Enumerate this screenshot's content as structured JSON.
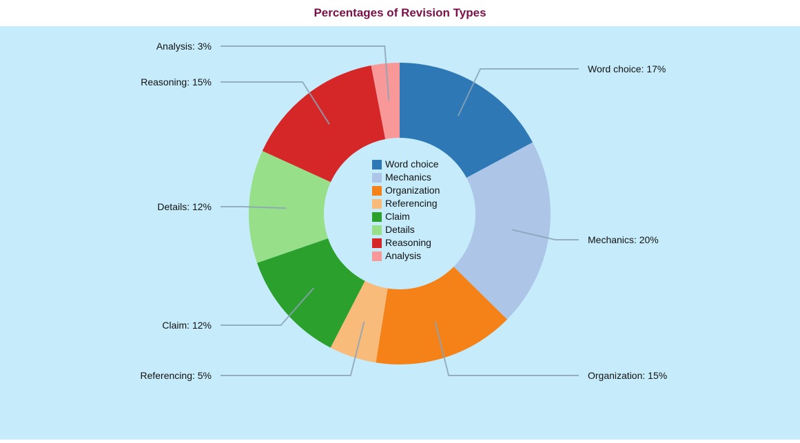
{
  "title": "Percentages of Revision Types",
  "colors": {
    "background": "#c6ecfb",
    "title": "#7a1048",
    "leader": "#8aa3b8"
  },
  "chart_data": {
    "type": "pie",
    "donut": true,
    "title": "Percentages of Revision Types",
    "legend_position": "center",
    "slices": [
      {
        "label": "Word choice",
        "value": 17,
        "color": "#2e78b5",
        "label_text": "Word choice: 17%"
      },
      {
        "label": "Mechanics",
        "value": 20,
        "color": "#adc6e8",
        "label_text": "Mechanics: 20%"
      },
      {
        "label": "Organization",
        "value": 15,
        "color": "#f58219",
        "label_text": "Organization: 15%"
      },
      {
        "label": "Referencing",
        "value": 5,
        "color": "#f8bb7a",
        "label_text": "Referencing: 5%"
      },
      {
        "label": "Claim",
        "value": 12,
        "color": "#2ca02c",
        "label_text": "Claim: 12%"
      },
      {
        "label": "Details",
        "value": 12,
        "color": "#98df8a",
        "label_text": "Details: 12%"
      },
      {
        "label": "Reasoning",
        "value": 15,
        "color": "#d62728",
        "label_text": "Reasoning: 15%"
      },
      {
        "label": "Analysis",
        "value": 3,
        "color": "#f99898",
        "label_text": "Analysis: 3%"
      }
    ]
  }
}
